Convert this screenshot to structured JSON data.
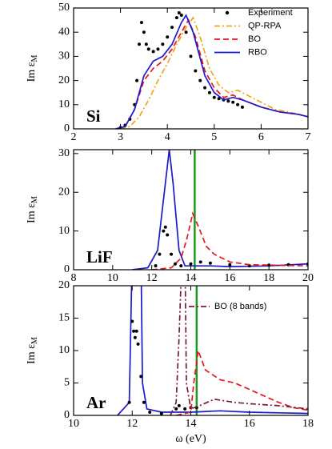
{
  "chart_data": [
    {
      "type": "line",
      "annotation": "Si",
      "ylabel": "Im ε",
      "ylabel_sub": "M",
      "xlim": [
        2,
        7
      ],
      "xticks": [
        2,
        3,
        4,
        5,
        6,
        7
      ],
      "ylim": [
        0,
        50
      ],
      "yticks": [
        0,
        10,
        20,
        30,
        40,
        50
      ],
      "legend": "upper right",
      "series": [
        {
          "name": "Experiment",
          "color": "#000000",
          "marker": "dot",
          "x": [
            3.0,
            3.1,
            3.2,
            3.3,
            3.35,
            3.4,
            3.45,
            3.5,
            3.55,
            3.6,
            3.7,
            3.8,
            3.9,
            4.0,
            4.1,
            4.2,
            4.25,
            4.3,
            4.4,
            4.5,
            4.6,
            4.7,
            4.8,
            4.9,
            5.0,
            5.1,
            5.2,
            5.3,
            5.4,
            5.5,
            5.6
          ],
          "values": [
            0.5,
            1.5,
            4,
            10,
            20,
            35,
            44,
            40,
            35,
            33,
            32,
            33,
            35,
            38,
            42,
            46,
            48,
            47,
            40,
            30,
            24,
            20,
            17,
            15,
            13,
            12.5,
            12,
            11.5,
            11,
            10,
            9
          ]
        },
        {
          "name": "QP-RPA",
          "color": "#f5a31a",
          "dash": "7,3,2,3",
          "x": [
            3.0,
            3.2,
            3.4,
            3.6,
            3.8,
            4.0,
            4.2,
            4.4,
            4.55,
            4.7,
            4.9,
            5.1,
            5.3,
            5.5,
            5.7,
            6.0,
            6.3,
            6.6,
            6.8,
            7.0
          ],
          "values": [
            0,
            1,
            5,
            12,
            20,
            27,
            35,
            42,
            46,
            38,
            25,
            18,
            15,
            16,
            14,
            11,
            8,
            7,
            6,
            5
          ]
        },
        {
          "name": "BO",
          "color": "#e8141c",
          "dash": "7,4",
          "x": [
            2.9,
            3.1,
            3.3,
            3.5,
            3.7,
            3.9,
            4.1,
            4.3,
            4.45,
            4.6,
            4.8,
            5.0,
            5.2,
            5.4,
            5.6,
            6.0,
            6.4,
            6.8,
            7.0
          ],
          "values": [
            0,
            1,
            8,
            20,
            25,
            28,
            33,
            40,
            45,
            38,
            24,
            17,
            13,
            14,
            12,
            9,
            7,
            6,
            5
          ]
        },
        {
          "name": "RBO",
          "color": "#1a1acc",
          "x": [
            2.9,
            3.1,
            3.3,
            3.5,
            3.7,
            3.9,
            4.1,
            4.3,
            4.4,
            4.55,
            4.8,
            5.0,
            5.2,
            5.4,
            5.6,
            6.0,
            6.4,
            6.8,
            7.0
          ],
          "values": [
            0,
            1,
            8,
            22,
            28,
            30,
            35,
            44,
            47,
            40,
            22,
            15,
            12,
            13,
            12,
            9,
            7,
            6,
            5
          ]
        }
      ]
    },
    {
      "type": "line",
      "annotation": "LiF",
      "ylabel": "Im ε",
      "ylabel_sub": "M",
      "xlim": [
        8,
        20
      ],
      "xticks": [
        8,
        10,
        12,
        14,
        16,
        18,
        20
      ],
      "ylim": [
        0,
        31
      ],
      "yticks": [
        0,
        10,
        20,
        30
      ],
      "vlines": [
        {
          "x": 14.2,
          "color": "#1a9a1a"
        }
      ],
      "series": [
        {
          "color": "#1a1acc",
          "x": [
            11,
            11.8,
            12.3,
            12.6,
            12.9,
            13.1,
            13.4,
            13.7,
            14.0,
            15,
            16,
            18,
            20
          ],
          "values": [
            0,
            0.5,
            5,
            18,
            31,
            22,
            5,
            1,
            1,
            1,
            0.8,
            1,
            1.5
          ]
        },
        {
          "color": "#000000",
          "marker": "dot",
          "x": [
            12.2,
            12.4,
            12.6,
            12.7,
            12.8,
            13.0,
            13.2,
            13.5,
            14,
            14.5,
            15,
            16,
            17,
            18,
            19,
            20
          ],
          "values": [
            1,
            4,
            10,
            11,
            9,
            4,
            1.5,
            1,
            1.5,
            2,
            1.7,
            1.3,
            1,
            1.2,
            1.3,
            1.5
          ]
        },
        {
          "color": "#e8141c",
          "dash": "7,4",
          "x": [
            12,
            13,
            13.5,
            13.8,
            14.1,
            14.4,
            14.8,
            15.2,
            15.6,
            16,
            17,
            18,
            20
          ],
          "values": [
            0,
            0.5,
            3,
            8,
            14.5,
            11,
            6,
            4,
            3,
            2,
            1.3,
            1.2,
            1
          ]
        }
      ]
    },
    {
      "type": "line",
      "annotation": "Ar",
      "ylabel": "Im ε",
      "ylabel_sub": "M",
      "xlabel": "ω (eV)",
      "xlim": [
        10,
        18
      ],
      "xticks": [
        10,
        12,
        14,
        16,
        18
      ],
      "ylim": [
        0,
        20
      ],
      "yticks": [
        0,
        5,
        10,
        15,
        20
      ],
      "vlines": [
        {
          "x": 14.2,
          "color": "#1a9a1a"
        }
      ],
      "legend": "upper right",
      "series": [
        {
          "color": "#1a1acc",
          "x": [
            11.5,
            11.9,
            12.0,
            12.3,
            12.35,
            12.5,
            13,
            14,
            15,
            16,
            17,
            18
          ],
          "values": [
            0,
            2,
            25,
            25,
            5,
            1,
            0.5,
            0.5,
            0.7,
            0.5,
            0.4,
            0.3
          ]
        },
        {
          "color": "#000000",
          "marker": "dot",
          "x": [
            11.9,
            12.0,
            12.05,
            12.1,
            12.15,
            12.2,
            12.3,
            12.4,
            12.6,
            13,
            13.5,
            13.6,
            13.8,
            14,
            14.2
          ],
          "values": [
            2,
            14.5,
            13,
            12,
            13,
            11,
            6,
            2,
            0.5,
            0.3,
            1,
            1.5,
            1,
            1.2,
            1.2
          ]
        },
        {
          "color": "#e8141c",
          "dash": "7,4",
          "x": [
            13.5,
            14.0,
            14.1,
            14.25,
            14.5,
            15,
            15.5,
            16,
            16.5,
            17,
            17.5,
            18
          ],
          "values": [
            0,
            0.5,
            5,
            10,
            7,
            5.5,
            5,
            4,
            3,
            2,
            1.2,
            0.8
          ]
        },
        {
          "name": "BO (8 bands)",
          "color": "#7a1a3a",
          "dash": "7,3,2,3",
          "x": [
            13.3,
            13.5,
            13.6,
            13.7,
            13.8,
            13.85,
            14,
            14.3,
            14.8,
            15.5,
            16,
            17,
            18
          ],
          "values": [
            0,
            2,
            12,
            25,
            25,
            5,
            1,
            1.5,
            2.5,
            2,
            1.8,
            1.5,
            1
          ]
        }
      ]
    }
  ]
}
